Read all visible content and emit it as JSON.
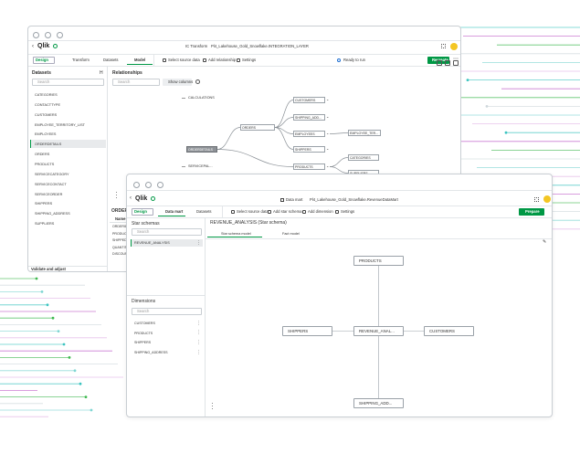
{
  "back_window": {
    "header": {
      "logo": "Qlik",
      "section": "IC Transform",
      "project": "Pl4_Lakehouse_Gold_Snowflake.INTEGRATION_LAYER"
    },
    "nav": {
      "mode": "Design",
      "tabs": [
        "Transform",
        "Datasets",
        "Model"
      ],
      "toolbar": [
        "Select source data",
        "Add relationship",
        "Settings"
      ],
      "status": "Ready to run",
      "action": "Recreate"
    },
    "datasets": {
      "title": "Datasets",
      "collapse": "H",
      "search": "Search",
      "items": [
        "CATEGORIES",
        "CONTACTTYPE",
        "CUSTOMERS",
        "EMPLOYEE_TERRITORY_LIST",
        "EMPLOYEES",
        "ORDERDETAILS",
        "ORDERS",
        "PRODUCTS",
        "SERVICECATEGORY",
        "SERVICECONTACT",
        "SERVICEORDER",
        "SHIPPERS",
        "SHIPPING_ADDRESS",
        "SUPPLIERS"
      ],
      "footer": "Validate and adjust"
    },
    "relationships": {
      "title": "Relationships",
      "search": "Search",
      "show_columns": "Show columns",
      "nodes": [
        "CALCULATIONS",
        "ORDERS",
        "CUSTOMERS",
        "SHIPPING_ADD...",
        "EMPLOYEES",
        "EMPLOYEE_TER...",
        "SHIPPERS",
        "ORDERDETAILS",
        "CATEGORIES",
        "PRODUCTS",
        "SUPPLIERS",
        "SERVICEPAL..."
      ]
    },
    "detail": {
      "title": "ORDERDETAILS",
      "header": "Name",
      "columns": [
        "ORDERID",
        "PRODUCTID",
        "SHIPPED",
        "QUANTITY",
        "DISCOUNT"
      ]
    }
  },
  "front_window": {
    "header": {
      "logo": "Qlik",
      "section": "Data mart",
      "project": "Pl4_Lakehouse_Gold_Snowflake.RevenueDataMart"
    },
    "nav": {
      "mode": "Design",
      "tabs": [
        "Data mart",
        "Datasets"
      ],
      "toolbar": [
        "Select source data",
        "Add star schema",
        "Add dimension",
        "Settings"
      ],
      "action": "Prepare"
    },
    "star_schemas": {
      "title": "Star schemas",
      "search": "Search",
      "items": [
        "REVENUE_ANALYSIS"
      ]
    },
    "dimensions": {
      "title": "Dimensions",
      "search": "Search",
      "items": [
        "CUSTOMERS",
        "PRODUCTS",
        "SHIPPERS",
        "SHIPPING_ADDRESS"
      ]
    },
    "schema": {
      "title": "REVENUE_ANALYSIS (Star schema)",
      "tabs": [
        "Star schema model",
        "Fact model"
      ],
      "nodes": [
        "PRODUCTS",
        "SHIPPERS",
        "REVENUE_ANAL...",
        "CUSTOMERS",
        "SHIPPING_ADD..."
      ]
    }
  }
}
